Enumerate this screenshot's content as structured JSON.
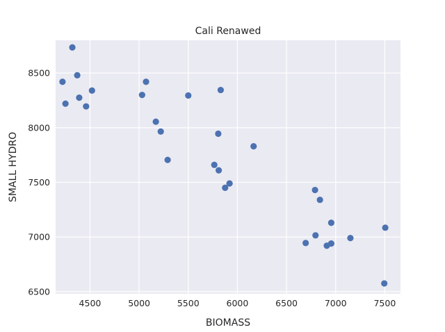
{
  "chart_data": {
    "type": "scatter",
    "title": "Cali Renawed",
    "xlabel": "BIOMASS",
    "ylabel": "SMALL HYDRO",
    "xlim": [
      4150,
      7660
    ],
    "ylim": [
      6480,
      8800
    ],
    "xticks": [
      4500,
      5000,
      5500,
      6000,
      6500,
      7000,
      7500
    ],
    "yticks": [
      6500,
      7000,
      7500,
      8000,
      8500
    ],
    "grid": true,
    "colors": {
      "background": "#eaeaf2",
      "grid": "#ffffff",
      "point": "#4c72b0"
    },
    "points": [
      {
        "x": 4320,
        "y": 8735
      },
      {
        "x": 4370,
        "y": 8480
      },
      {
        "x": 4220,
        "y": 8420
      },
      {
        "x": 4520,
        "y": 8340
      },
      {
        "x": 4390,
        "y": 8275
      },
      {
        "x": 4250,
        "y": 8220
      },
      {
        "x": 4460,
        "y": 8195
      },
      {
        "x": 5070,
        "y": 8420
      },
      {
        "x": 5030,
        "y": 8300
      },
      {
        "x": 5500,
        "y": 8295
      },
      {
        "x": 5830,
        "y": 8345
      },
      {
        "x": 5170,
        "y": 8055
      },
      {
        "x": 5220,
        "y": 7965
      },
      {
        "x": 5805,
        "y": 7945
      },
      {
        "x": 6165,
        "y": 7830
      },
      {
        "x": 5290,
        "y": 7705
      },
      {
        "x": 5765,
        "y": 7660
      },
      {
        "x": 5810,
        "y": 7610
      },
      {
        "x": 5920,
        "y": 7490
      },
      {
        "x": 5875,
        "y": 7450
      },
      {
        "x": 6790,
        "y": 7430
      },
      {
        "x": 6840,
        "y": 7340
      },
      {
        "x": 6955,
        "y": 7130
      },
      {
        "x": 7505,
        "y": 7085
      },
      {
        "x": 6795,
        "y": 7015
      },
      {
        "x": 7150,
        "y": 6990
      },
      {
        "x": 6695,
        "y": 6945
      },
      {
        "x": 6955,
        "y": 6940
      },
      {
        "x": 6910,
        "y": 6920
      },
      {
        "x": 7495,
        "y": 6575
      }
    ]
  }
}
